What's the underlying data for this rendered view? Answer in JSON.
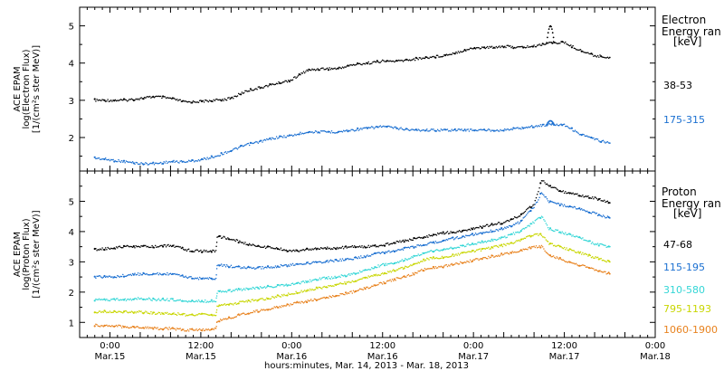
{
  "chart_data": [
    {
      "type": "scatter",
      "panel": "electron",
      "ylabel_lines": [
        "ACE EPAM",
        "log(Electron Flux)",
        "[1/(cm²s ster MeV)]"
      ],
      "ylim": [
        1.1,
        5.5
      ],
      "yticks": [
        2,
        3,
        4,
        5
      ],
      "legend_title": [
        "Electron",
        "Energy ran",
        "[keV]"
      ],
      "series": [
        {
          "name": "38-53",
          "color": "#000000",
          "x": [
            -6,
            0,
            6,
            12,
            18,
            24,
            30,
            36,
            42,
            48,
            54,
            60,
            66,
            72,
            78,
            84,
            90,
            96,
            102,
            108,
            114,
            120,
            126,
            132,
            138,
            144,
            150,
            156,
            162,
            168,
            174,
            180,
            186,
            192,
            198
          ],
          "y": [
            3.0,
            3.0,
            3.0,
            3.05,
            3.1,
            3.05,
            2.95,
            2.97,
            3.0,
            3.05,
            3.25,
            3.35,
            3.45,
            3.55,
            3.8,
            3.85,
            3.85,
            3.95,
            4.0,
            4.05,
            4.05,
            4.1,
            4.15,
            4.2,
            4.3,
            4.4,
            4.42,
            4.45,
            4.42,
            4.45,
            4.55,
            4.55,
            4.35,
            4.2,
            4.15
          ]
        },
        {
          "name": "175-315",
          "color": "#1a6fd1",
          "x": [
            -6,
            0,
            6,
            12,
            18,
            24,
            30,
            36,
            42,
            48,
            54,
            60,
            66,
            72,
            78,
            84,
            90,
            96,
            102,
            108,
            114,
            120,
            126,
            132,
            138,
            144,
            150,
            156,
            162,
            168,
            174,
            180,
            186,
            192,
            198
          ],
          "y": [
            1.45,
            1.4,
            1.35,
            1.3,
            1.3,
            1.35,
            1.35,
            1.4,
            1.5,
            1.65,
            1.8,
            1.9,
            2.0,
            2.05,
            2.15,
            2.15,
            2.15,
            2.2,
            2.25,
            2.3,
            2.25,
            2.2,
            2.2,
            2.2,
            2.2,
            2.2,
            2.2,
            2.2,
            2.25,
            2.3,
            2.35,
            2.35,
            2.1,
            1.95,
            1.85
          ]
        }
      ],
      "spikes": [
        {
          "series": "38-53",
          "x": 174.5,
          "y": 5.0
        },
        {
          "series": "175-315",
          "x": 174.5,
          "y": 2.45
        }
      ]
    },
    {
      "type": "scatter",
      "panel": "proton",
      "ylabel_lines": [
        "ACE EPAM",
        "log(Proton Flux)",
        "[1/(cm²s ster MeV)]"
      ],
      "ylim": [
        0.5,
        6.0
      ],
      "yticks": [
        1,
        2,
        3,
        4,
        5
      ],
      "legend_title": [
        "Proton",
        "Energy ran",
        "[keV]"
      ],
      "series": [
        {
          "name": "47-68",
          "color": "#000000",
          "x": [
            -6,
            0,
            6,
            12,
            18,
            24,
            30,
            36,
            42,
            42.5,
            48,
            54,
            60,
            66,
            72,
            78,
            84,
            90,
            96,
            102,
            108,
            114,
            120,
            126,
            132,
            138,
            144,
            150,
            156,
            162,
            168,
            171,
            174,
            180,
            186,
            192,
            198
          ],
          "y": [
            3.4,
            3.45,
            3.5,
            3.5,
            3.5,
            3.55,
            3.4,
            3.35,
            3.35,
            3.85,
            3.75,
            3.6,
            3.5,
            3.45,
            3.35,
            3.4,
            3.45,
            3.45,
            3.5,
            3.5,
            3.55,
            3.65,
            3.75,
            3.85,
            3.95,
            4.0,
            4.1,
            4.2,
            4.3,
            4.5,
            4.9,
            5.7,
            5.5,
            5.3,
            5.2,
            5.1,
            4.95
          ]
        },
        {
          "name": "115-195",
          "color": "#1a6fd1",
          "x": [
            -6,
            0,
            6,
            12,
            18,
            24,
            30,
            36,
            42,
            42.5,
            48,
            54,
            60,
            66,
            72,
            78,
            84,
            90,
            96,
            102,
            108,
            114,
            120,
            126,
            132,
            138,
            144,
            150,
            156,
            162,
            168,
            171,
            174,
            180,
            186,
            192,
            198
          ],
          "y": [
            2.5,
            2.5,
            2.55,
            2.6,
            2.6,
            2.6,
            2.5,
            2.45,
            2.45,
            2.9,
            2.85,
            2.8,
            2.8,
            2.85,
            2.9,
            2.95,
            3.0,
            3.05,
            3.1,
            3.2,
            3.3,
            3.4,
            3.5,
            3.6,
            3.7,
            3.8,
            3.9,
            4.0,
            4.1,
            4.3,
            4.8,
            5.3,
            5.0,
            4.85,
            4.75,
            4.6,
            4.45
          ]
        },
        {
          "name": "310-580",
          "color": "#33d6d6",
          "x": [
            -6,
            0,
            6,
            12,
            18,
            24,
            30,
            36,
            42,
            42.5,
            48,
            54,
            60,
            66,
            72,
            78,
            84,
            90,
            96,
            102,
            108,
            114,
            120,
            126,
            132,
            138,
            144,
            150,
            156,
            162,
            168,
            171,
            174,
            180,
            186,
            192,
            198
          ],
          "y": [
            1.75,
            1.75,
            1.75,
            1.8,
            1.75,
            1.75,
            1.7,
            1.7,
            1.7,
            2.0,
            2.05,
            2.1,
            2.15,
            2.2,
            2.25,
            2.35,
            2.45,
            2.5,
            2.6,
            2.75,
            2.9,
            3.0,
            3.15,
            3.35,
            3.4,
            3.5,
            3.6,
            3.7,
            3.8,
            4.0,
            4.3,
            4.5,
            4.1,
            3.95,
            3.8,
            3.6,
            3.5
          ]
        },
        {
          "name": "795-1193",
          "color": "#c8d600",
          "x": [
            -6,
            0,
            6,
            12,
            18,
            24,
            30,
            36,
            42,
            42.5,
            48,
            54,
            60,
            66,
            72,
            78,
            84,
            90,
            96,
            102,
            108,
            114,
            120,
            126,
            132,
            138,
            144,
            150,
            156,
            162,
            168,
            171,
            174,
            180,
            186,
            192,
            198
          ],
          "y": [
            1.35,
            1.35,
            1.35,
            1.35,
            1.3,
            1.3,
            1.25,
            1.25,
            1.25,
            1.55,
            1.6,
            1.7,
            1.75,
            1.85,
            1.95,
            2.05,
            2.15,
            2.25,
            2.35,
            2.5,
            2.6,
            2.75,
            2.9,
            3.1,
            3.15,
            3.25,
            3.35,
            3.45,
            3.55,
            3.7,
            3.9,
            3.9,
            3.6,
            3.45,
            3.3,
            3.15,
            3.0
          ]
        },
        {
          "name": "1060-1900",
          "color": "#e8821e",
          "x": [
            -6,
            0,
            6,
            12,
            18,
            24,
            30,
            36,
            42,
            42.5,
            48,
            54,
            60,
            66,
            72,
            78,
            84,
            90,
            96,
            102,
            108,
            114,
            120,
            126,
            132,
            138,
            144,
            150,
            156,
            162,
            168,
            171,
            174,
            180,
            186,
            192,
            198
          ],
          "y": [
            0.9,
            0.9,
            0.85,
            0.85,
            0.8,
            0.8,
            0.75,
            0.75,
            0.8,
            1.05,
            1.15,
            1.3,
            1.4,
            1.5,
            1.6,
            1.7,
            1.8,
            1.9,
            2.0,
            2.15,
            2.3,
            2.45,
            2.6,
            2.8,
            2.85,
            2.95,
            3.05,
            3.15,
            3.25,
            3.35,
            3.5,
            3.5,
            3.2,
            3.05,
            2.9,
            2.75,
            2.6
          ]
        }
      ]
    }
  ],
  "time_axis": {
    "xlim": [
      -12,
      216
    ],
    "ticks": [
      {
        "x": 0,
        "time": "0:00",
        "date": "Mar.15"
      },
      {
        "x": 36,
        "time": "12:00",
        "date": "Mar.15"
      },
      {
        "x": 72,
        "time": "0:00",
        "date": "Mar.16"
      },
      {
        "x": 108,
        "time": "12:00",
        "date": "Mar.16"
      },
      {
        "x": 144,
        "time": "0:00",
        "date": "Mar.17"
      },
      {
        "x": 180,
        "time": "12:00",
        "date": "Mar.17"
      },
      {
        "x": 216,
        "time": "0:00",
        "date": "Mar.18"
      }
    ],
    "xlabel": "hours:minutes, Mar. 14, 2013 - Mar. 18, 2013"
  }
}
